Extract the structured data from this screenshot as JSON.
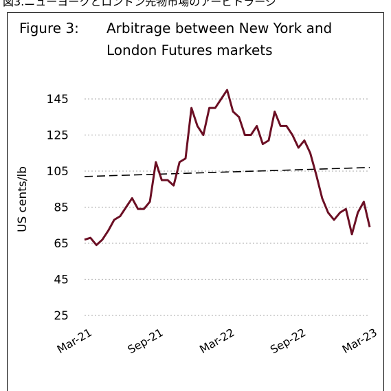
{
  "header": "図3.ニューヨークとロンドン先物市場のアービトラージ",
  "chart_data": {
    "type": "line",
    "figure_label": "Figure 3:",
    "title": [
      "Arbitrage between New York and",
      "London Futures markets"
    ],
    "y_label": "US cents/lb",
    "categories": [
      "Mar-21",
      null,
      null,
      null,
      null,
      null,
      null,
      null,
      null,
      null,
      null,
      null,
      "Sep-21",
      null,
      null,
      null,
      null,
      null,
      null,
      null,
      null,
      null,
      null,
      null,
      "Mar-22",
      null,
      null,
      null,
      null,
      null,
      null,
      null,
      null,
      null,
      null,
      null,
      "Sep-22",
      null,
      null,
      null,
      null,
      null,
      null,
      null,
      null,
      null,
      null,
      null,
      "Mar-23"
    ],
    "series": [
      {
        "color": "#6b0f24",
        "values": [
          67,
          68,
          64,
          67,
          72,
          78,
          80,
          85,
          90,
          84,
          84,
          88,
          110,
          100,
          100,
          97,
          110,
          112,
          140,
          130,
          125,
          140,
          140,
          145,
          150,
          138,
          135,
          125,
          125,
          130,
          120,
          122,
          138,
          130,
          130,
          125,
          118,
          122,
          115,
          103,
          90,
          82,
          78,
          82,
          84,
          70,
          82,
          88,
          74
        ]
      }
    ],
    "trend": {
      "start": 102,
      "end": 107,
      "color": "#000000"
    },
    "ylim": [
      25,
      155
    ],
    "yticks": [
      25,
      45,
      65,
      85,
      105,
      125,
      145
    ],
    "grid": true
  }
}
